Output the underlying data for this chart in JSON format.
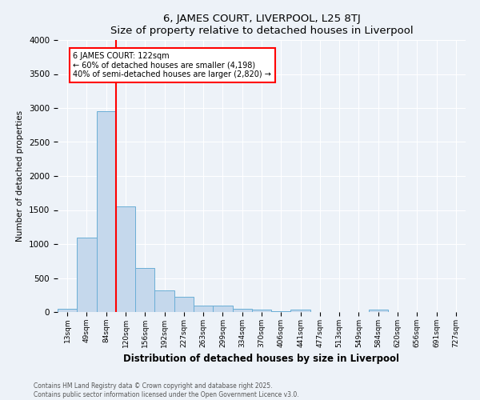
{
  "title": "6, JAMES COURT, LIVERPOOL, L25 8TJ",
  "subtitle": "Size of property relative to detached houses in Liverpool",
  "xlabel": "Distribution of detached houses by size in Liverpool",
  "ylabel": "Number of detached properties",
  "bins": [
    "13sqm",
    "49sqm",
    "84sqm",
    "120sqm",
    "156sqm",
    "192sqm",
    "227sqm",
    "263sqm",
    "299sqm",
    "334sqm",
    "370sqm",
    "406sqm",
    "441sqm",
    "477sqm",
    "513sqm",
    "549sqm",
    "584sqm",
    "620sqm",
    "656sqm",
    "691sqm",
    "727sqm"
  ],
  "values": [
    50,
    1100,
    2950,
    1550,
    650,
    320,
    220,
    100,
    100,
    50,
    40,
    10,
    30,
    5,
    5,
    5,
    40,
    5,
    5,
    5,
    5
  ],
  "bar_color": "#c5d8ec",
  "bar_edge_color": "#6aaed6",
  "vline_color": "red",
  "annotation_text": "6 JAMES COURT: 122sqm\n← 60% of detached houses are smaller (4,198)\n40% of semi-detached houses are larger (2,820) →",
  "annotation_box_color": "white",
  "annotation_box_edge": "red",
  "ylim": [
    0,
    4000
  ],
  "yticks": [
    0,
    500,
    1000,
    1500,
    2000,
    2500,
    3000,
    3500,
    4000
  ],
  "footer1": "Contains HM Land Registry data © Crown copyright and database right 2025.",
  "footer2": "Contains public sector information licensed under the Open Government Licence v3.0.",
  "bg_color": "#edf2f8",
  "plot_bg_color": "#edf2f8"
}
